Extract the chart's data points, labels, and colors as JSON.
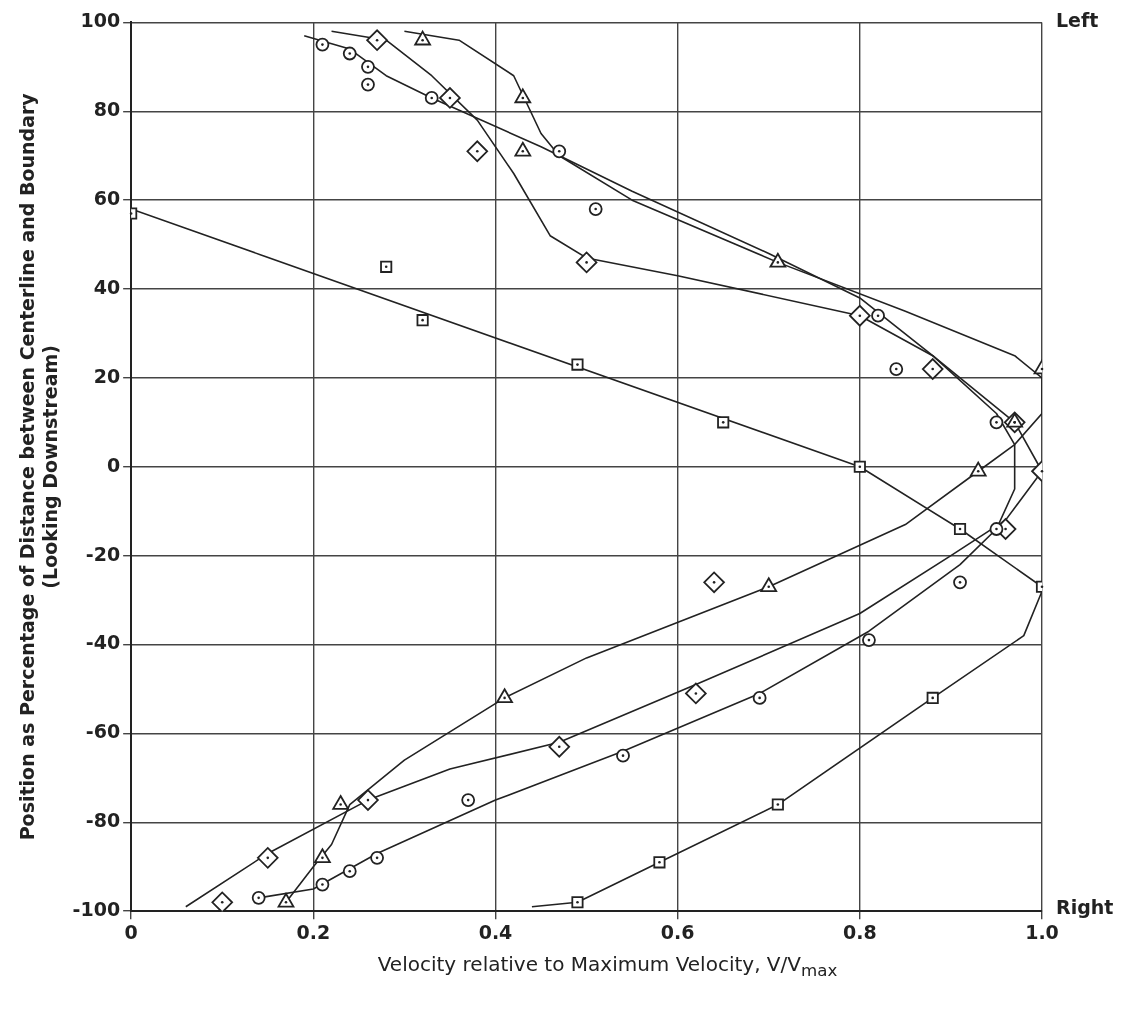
{
  "chart_data": {
    "type": "scatter",
    "xlabel": "Velocity relative to Maximum Velocity,  V/V$_{max}$",
    "ylabel": "Position as Percentage of Distance between Centerline and Boundary\n(Looking Downstream)",
    "xlim": [
      0,
      1
    ],
    "xticks": [
      0,
      0.2,
      0.4,
      0.6,
      0.8,
      {
        "value": 1,
        "label": "1.0"
      }
    ],
    "ylim": [
      -100,
      100
    ],
    "yticks": [
      -100,
      -80,
      -60,
      -40,
      -20,
      0,
      20,
      40,
      60,
      80,
      100
    ],
    "grid": true,
    "legend": false,
    "annotations": [
      "Left",
      "Right"
    ],
    "series": [
      {
        "marker": "circle",
        "color": "#222222",
        "x": [
          0.21,
          0.24,
          0.26,
          0.26,
          0.33,
          0.47,
          0.51,
          0.82,
          0.84,
          0.95,
          0.95,
          0.91,
          0.81,
          0.69,
          0.54,
          0.37,
          0.27,
          0.24,
          0.21,
          0.14
        ],
        "values": [
          95,
          93,
          90,
          86,
          83,
          71,
          58,
          34,
          22,
          10,
          -14,
          -26,
          -39,
          -52,
          -65,
          -75,
          -88,
          -91,
          -94,
          -97
        ]
      },
      {
        "marker": "square",
        "color": "#222222",
        "x": [
          0,
          0.28,
          0.32,
          0.49,
          0.65,
          0.8,
          0.91,
          1,
          0.88,
          0.71,
          0.58,
          0.49
        ],
        "values": [
          57,
          45,
          33,
          23,
          10,
          0,
          -14,
          -27,
          -52,
          -76,
          -89,
          -98
        ]
      },
      {
        "marker": "triangle",
        "color": "#222222",
        "x": [
          0.32,
          0.43,
          0.43,
          0.71,
          1,
          0.97,
          0.93,
          0.7,
          0.41,
          0.23,
          0.21,
          0.17
        ],
        "values": [
          96,
          83,
          71,
          46,
          22,
          10,
          -1,
          -27,
          -52,
          -76,
          -88,
          -98
        ]
      },
      {
        "marker": "diamond",
        "color": "#222222",
        "x": [
          0.27,
          0.35,
          0.38,
          0.5,
          0.8,
          0.88,
          0.97,
          1,
          0.96,
          0.64,
          0.62,
          0.47,
          0.26,
          0.15,
          0.1
        ],
        "values": [
          96,
          83,
          71,
          46,
          34,
          22,
          10,
          -1,
          -14,
          -26,
          -51,
          -63,
          -75,
          -88,
          -98
        ]
      },
      {
        "type": "line",
        "marker": "none",
        "line_style": "solid",
        "color": "#222222",
        "x": [
          0.19,
          0.24,
          0.28,
          0.33,
          0.45,
          0.55,
          0.7,
          0.8,
          0.88,
          0.95,
          0.97,
          0.97,
          0.95,
          0.91,
          0.81,
          0.69,
          0.54,
          0.4,
          0.27,
          0.2,
          0.14
        ],
        "values": [
          97,
          94,
          88,
          83,
          72,
          62,
          48,
          38,
          25,
          12,
          5,
          -5,
          -14,
          -22,
          -37,
          -51,
          -64,
          -75,
          -87,
          -95,
          -97
        ]
      },
      {
        "type": "line",
        "marker": "none",
        "line_style": "solid",
        "color": "#222222",
        "x": [
          0,
          0.8,
          0.91,
          1,
          1,
          0.98,
          0.88,
          0.71,
          0.58,
          0.49,
          0.44
        ],
        "values": [
          58,
          0,
          -14,
          -27,
          -28,
          -38,
          -52,
          -76,
          -89,
          -98,
          -99
        ]
      },
      {
        "type": "line",
        "marker": "none",
        "line_style": "solid",
        "color": "#222222",
        "x": [
          0.3,
          0.36,
          0.42,
          0.45,
          0.47,
          0.55,
          0.71,
          0.85,
          0.97,
          1,
          1,
          0.97,
          0.93,
          0.85,
          0.7,
          0.5,
          0.41,
          0.3,
          0.24,
          0.22,
          0.2,
          0.17
        ],
        "values": [
          98,
          96,
          88,
          75,
          70,
          60,
          46,
          35,
          25,
          20,
          12,
          5,
          -1,
          -13,
          -27,
          -43,
          -52,
          -66,
          -76,
          -85,
          -90,
          -98
        ]
      },
      {
        "type": "line",
        "marker": "none",
        "line_style": "solid",
        "color": "#222222",
        "x": [
          0.22,
          0.28,
          0.33,
          0.38,
          0.42,
          0.46,
          0.5,
          0.6,
          0.8,
          0.88,
          0.94,
          0.97,
          1,
          0.96,
          0.9,
          0.8,
          0.62,
          0.47,
          0.35,
          0.26,
          0.15,
          0.06
        ],
        "values": [
          98,
          96,
          88,
          78,
          66,
          52,
          47,
          43,
          34,
          25,
          15,
          10,
          -1,
          -12,
          -20,
          -33,
          -49,
          -62,
          -68,
          -75,
          -87,
          -99
        ]
      }
    ]
  }
}
